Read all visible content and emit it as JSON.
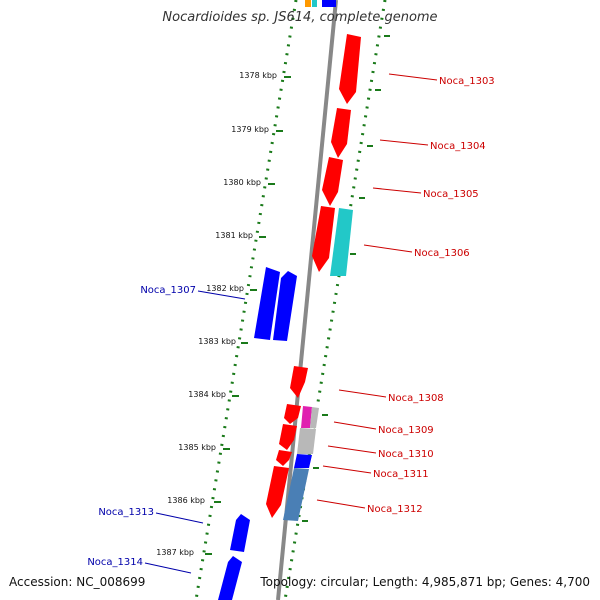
{
  "title": "Nocardioides sp. JS614, complete genome",
  "accession": "Accession: NC_008699",
  "topology": "Topology: circular; Length: 4,985,871 bp; Genes: 4,700",
  "colors": {
    "backbone": "#888888",
    "forward_gene": "#ff0000",
    "reverse_gene": "#0000ff",
    "forward_label": "#cc0000",
    "reverse_label": "#0000aa",
    "ruler": "#1a7a1a",
    "teal_gene": "#22c8c8",
    "steel_gene": "#4a7fb5",
    "magenta_gene": "#e020b0",
    "gray_gene": "#b8b8b8"
  },
  "kbp_ticks": [
    "1378 kbp",
    "1379 kbp",
    "1380 kbp",
    "1381 kbp",
    "1382 kbp",
    "1383 kbp",
    "1384 kbp",
    "1385 kbp",
    "1386 kbp",
    "1387 kbp"
  ],
  "forward_labels": [
    "Noca_1303",
    "Noca_1304",
    "Noca_1305",
    "Noca_1306",
    "Noca_1308",
    "Noca_1309",
    "Noca_1310",
    "Noca_1311",
    "Noca_1312"
  ],
  "reverse_labels": [
    "Noca_1307",
    "Noca_1313",
    "Noca_1314"
  ]
}
